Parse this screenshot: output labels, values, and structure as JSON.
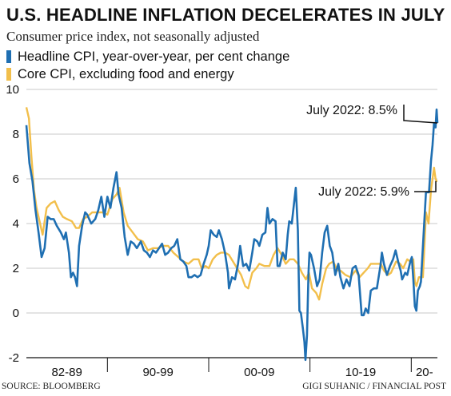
{
  "title": "U.S. HEADLINE INFLATION DECELERATES IN JULY",
  "subtitle": "Consumer price index, not seasonally adjusted",
  "source": "SOURCE: BLOOMBERG",
  "credit": "GIGI SUHANIC / FINANCIAL POST",
  "colors": {
    "headline": "#1f6fb2",
    "core": "#f2bf4b",
    "grid": "#c8c8c8",
    "axis": "#111111"
  },
  "chart_data": {
    "type": "line",
    "title": "U.S. HEADLINE INFLATION DECELERATES IN JULY",
    "subtitle": "Consumer price index, not seasonally adjusted",
    "xlabel": "",
    "ylabel": "",
    "xlim": [
      1982.0,
      2022.58
    ],
    "ylim": [
      -2,
      10
    ],
    "y_ticks": [
      -2,
      0,
      2,
      4,
      6,
      8,
      10
    ],
    "x_tick_labels": [
      {
        "label": "82-89",
        "x": 1986.0
      },
      {
        "label": "90-99",
        "x": 1995.0
      },
      {
        "label": "00-09",
        "x": 2005.0
      },
      {
        "label": "10-19",
        "x": 2015.0
      },
      {
        "label": "20-",
        "x": 2021.3
      }
    ],
    "x_separators": [
      1990,
      2000,
      2010,
      2020
    ],
    "grid": "horizontal",
    "legend_position": "top-left",
    "series": [
      {
        "name": "Headline CPI, year-over-year, per cent change",
        "color": "#1f6fb2",
        "points": [
          [
            1982.0,
            8.4
          ],
          [
            1982.3,
            6.7
          ],
          [
            1982.6,
            5.9
          ],
          [
            1982.9,
            4.6
          ],
          [
            1983.2,
            3.6
          ],
          [
            1983.5,
            2.5
          ],
          [
            1983.8,
            2.9
          ],
          [
            1984.1,
            4.3
          ],
          [
            1984.4,
            4.2
          ],
          [
            1984.7,
            4.2
          ],
          [
            1985.0,
            3.9
          ],
          [
            1985.4,
            3.6
          ],
          [
            1985.7,
            3.3
          ],
          [
            1985.9,
            3.6
          ],
          [
            1986.2,
            2.7
          ],
          [
            1986.4,
            1.6
          ],
          [
            1986.6,
            1.8
          ],
          [
            1986.8,
            1.6
          ],
          [
            1987.0,
            1.2
          ],
          [
            1987.2,
            3.0
          ],
          [
            1987.5,
            3.9
          ],
          [
            1987.8,
            4.5
          ],
          [
            1988.0,
            4.4
          ],
          [
            1988.4,
            4.0
          ],
          [
            1988.8,
            4.2
          ],
          [
            1989.1,
            4.6
          ],
          [
            1989.4,
            5.2
          ],
          [
            1989.7,
            4.3
          ],
          [
            1990.0,
            5.2
          ],
          [
            1990.3,
            4.7
          ],
          [
            1990.6,
            5.6
          ],
          [
            1990.9,
            6.3
          ],
          [
            1991.1,
            5.3
          ],
          [
            1991.4,
            4.7
          ],
          [
            1991.7,
            3.4
          ],
          [
            1992.0,
            2.6
          ],
          [
            1992.3,
            3.2
          ],
          [
            1992.6,
            3.1
          ],
          [
            1992.9,
            2.9
          ],
          [
            1993.3,
            3.2
          ],
          [
            1993.6,
            2.8
          ],
          [
            1993.9,
            2.7
          ],
          [
            1994.2,
            2.5
          ],
          [
            1994.5,
            2.8
          ],
          [
            1994.8,
            2.7
          ],
          [
            1995.1,
            2.9
          ],
          [
            1995.4,
            3.1
          ],
          [
            1995.7,
            2.6
          ],
          [
            1996.0,
            2.7
          ],
          [
            1996.3,
            2.9
          ],
          [
            1996.6,
            3.0
          ],
          [
            1996.9,
            3.3
          ],
          [
            1997.2,
            2.4
          ],
          [
            1997.5,
            2.3
          ],
          [
            1997.8,
            2.1
          ],
          [
            1998.0,
            1.6
          ],
          [
            1998.3,
            1.6
          ],
          [
            1998.6,
            1.7
          ],
          [
            1998.9,
            1.6
          ],
          [
            1999.2,
            1.7
          ],
          [
            1999.5,
            2.2
          ],
          [
            1999.8,
            2.6
          ],
          [
            2000.0,
            3.0
          ],
          [
            2000.2,
            3.7
          ],
          [
            2000.5,
            3.5
          ],
          [
            2000.8,
            3.4
          ],
          [
            2001.0,
            3.7
          ],
          [
            2001.3,
            3.3
          ],
          [
            2001.6,
            2.7
          ],
          [
            2001.9,
            1.8
          ],
          [
            2002.0,
            1.1
          ],
          [
            2002.3,
            1.6
          ],
          [
            2002.6,
            1.5
          ],
          [
            2002.9,
            2.2
          ],
          [
            2003.1,
            3.0
          ],
          [
            2003.4,
            2.1
          ],
          [
            2003.7,
            2.2
          ],
          [
            2004.0,
            1.9
          ],
          [
            2004.3,
            2.7
          ],
          [
            2004.5,
            3.3
          ],
          [
            2004.8,
            3.2
          ],
          [
            2005.0,
            3.0
          ],
          [
            2005.3,
            3.5
          ],
          [
            2005.6,
            3.6
          ],
          [
            2005.8,
            4.7
          ],
          [
            2006.0,
            4.0
          ],
          [
            2006.3,
            4.2
          ],
          [
            2006.6,
            4.1
          ],
          [
            2006.8,
            2.1
          ],
          [
            2007.0,
            2.1
          ],
          [
            2007.3,
            2.7
          ],
          [
            2007.6,
            2.4
          ],
          [
            2007.8,
            3.5
          ],
          [
            2007.95,
            4.1
          ],
          [
            2008.2,
            4.0
          ],
          [
            2008.45,
            5.0
          ],
          [
            2008.6,
            5.6
          ],
          [
            2008.8,
            3.7
          ],
          [
            2008.95,
            0.1
          ],
          [
            2009.1,
            0.0
          ],
          [
            2009.3,
            -0.7
          ],
          [
            2009.45,
            -1.3
          ],
          [
            2009.55,
            -2.1
          ],
          [
            2009.7,
            -1.0
          ],
          [
            2009.85,
            1.8
          ],
          [
            2009.95,
            2.7
          ],
          [
            2010.1,
            2.6
          ],
          [
            2010.4,
            2.0
          ],
          [
            2010.7,
            1.2
          ],
          [
            2010.95,
            1.5
          ],
          [
            2011.2,
            2.7
          ],
          [
            2011.45,
            3.6
          ],
          [
            2011.7,
            3.9
          ],
          [
            2011.95,
            3.0
          ],
          [
            2012.2,
            2.7
          ],
          [
            2012.5,
            1.7
          ],
          [
            2012.8,
            2.2
          ],
          [
            2013.0,
            1.6
          ],
          [
            2013.3,
            1.1
          ],
          [
            2013.6,
            1.5
          ],
          [
            2013.9,
            1.2
          ],
          [
            2014.2,
            2.0
          ],
          [
            2014.5,
            2.1
          ],
          [
            2014.8,
            1.7
          ],
          [
            2014.95,
            0.8
          ],
          [
            2015.1,
            -0.1
          ],
          [
            2015.3,
            -0.1
          ],
          [
            2015.5,
            0.2
          ],
          [
            2015.75,
            0.0
          ],
          [
            2016.0,
            1.0
          ],
          [
            2016.3,
            1.1
          ],
          [
            2016.6,
            1.1
          ],
          [
            2016.95,
            2.1
          ],
          [
            2017.1,
            2.7
          ],
          [
            2017.3,
            2.2
          ],
          [
            2017.6,
            1.7
          ],
          [
            2017.9,
            2.1
          ],
          [
            2018.2,
            2.4
          ],
          [
            2018.45,
            2.8
          ],
          [
            2018.7,
            2.3
          ],
          [
            2018.95,
            1.9
          ],
          [
            2019.1,
            1.5
          ],
          [
            2019.4,
            1.8
          ],
          [
            2019.6,
            1.7
          ],
          [
            2019.9,
            2.3
          ],
          [
            2020.05,
            2.5
          ],
          [
            2020.2,
            1.5
          ],
          [
            2020.35,
            0.3
          ],
          [
            2020.5,
            0.1
          ],
          [
            2020.65,
            1.0
          ],
          [
            2020.85,
            1.2
          ],
          [
            2020.95,
            1.4
          ],
          [
            2021.1,
            2.6
          ],
          [
            2021.3,
            4.2
          ],
          [
            2021.45,
            5.4
          ],
          [
            2021.75,
            5.4
          ],
          [
            2021.95,
            6.8
          ],
          [
            2022.1,
            7.5
          ],
          [
            2022.25,
            8.5
          ],
          [
            2022.4,
            8.3
          ],
          [
            2022.5,
            9.1
          ],
          [
            2022.58,
            8.5
          ]
        ]
      },
      {
        "name": "Core CPI, excluding food and energy",
        "color": "#f2bf4b",
        "points": [
          [
            1982.0,
            9.2
          ],
          [
            1982.25,
            8.7
          ],
          [
            1982.5,
            7.0
          ],
          [
            1982.75,
            5.5
          ],
          [
            1983.0,
            4.7
          ],
          [
            1983.3,
            4.1
          ],
          [
            1983.6,
            3.5
          ],
          [
            1984.0,
            4.7
          ],
          [
            1984.4,
            4.9
          ],
          [
            1984.8,
            5.0
          ],
          [
            1985.2,
            4.6
          ],
          [
            1985.6,
            4.3
          ],
          [
            1986.0,
            4.2
          ],
          [
            1986.5,
            4.1
          ],
          [
            1986.9,
            3.8
          ],
          [
            1987.2,
            3.8
          ],
          [
            1987.6,
            4.2
          ],
          [
            1988.0,
            4.3
          ],
          [
            1988.5,
            4.5
          ],
          [
            1989.0,
            4.5
          ],
          [
            1989.5,
            4.5
          ],
          [
            1990.0,
            4.4
          ],
          [
            1990.5,
            5.1
          ],
          [
            1990.9,
            5.3
          ],
          [
            1991.2,
            5.6
          ],
          [
            1991.6,
            4.5
          ],
          [
            1992.0,
            3.9
          ],
          [
            1992.5,
            3.6
          ],
          [
            1993.0,
            3.3
          ],
          [
            1993.5,
            3.2
          ],
          [
            1994.0,
            2.8
          ],
          [
            1994.5,
            2.9
          ],
          [
            1995.0,
            2.9
          ],
          [
            1995.5,
            3.0
          ],
          [
            1996.0,
            3.0
          ],
          [
            1996.5,
            2.7
          ],
          [
            1997.0,
            2.5
          ],
          [
            1997.5,
            2.3
          ],
          [
            1998.0,
            2.2
          ],
          [
            1998.5,
            2.4
          ],
          [
            1999.0,
            2.4
          ],
          [
            1999.3,
            2.0
          ],
          [
            1999.7,
            2.1
          ],
          [
            2000.0,
            2.0
          ],
          [
            2000.4,
            2.4
          ],
          [
            2000.8,
            2.6
          ],
          [
            2001.2,
            2.7
          ],
          [
            2001.6,
            2.7
          ],
          [
            2002.0,
            2.6
          ],
          [
            2002.4,
            2.3
          ],
          [
            2002.8,
            2.0
          ],
          [
            2003.2,
            1.7
          ],
          [
            2003.6,
            1.2
          ],
          [
            2003.9,
            1.1
          ],
          [
            2004.3,
            1.8
          ],
          [
            2004.7,
            2.0
          ],
          [
            2005.0,
            2.2
          ],
          [
            2005.5,
            2.1
          ],
          [
            2006.0,
            2.1
          ],
          [
            2006.4,
            2.6
          ],
          [
            2006.8,
            2.9
          ],
          [
            2007.2,
            2.6
          ],
          [
            2007.6,
            2.2
          ],
          [
            2008.0,
            2.4
          ],
          [
            2008.4,
            2.4
          ],
          [
            2008.8,
            2.2
          ],
          [
            2009.2,
            1.8
          ],
          [
            2009.6,
            1.5
          ],
          [
            2009.9,
            1.8
          ],
          [
            2010.2,
            1.1
          ],
          [
            2010.6,
            0.9
          ],
          [
            2010.9,
            0.6
          ],
          [
            2011.2,
            1.3
          ],
          [
            2011.6,
            2.0
          ],
          [
            2011.9,
            2.2
          ],
          [
            2012.3,
            2.3
          ],
          [
            2012.7,
            1.9
          ],
          [
            2013.0,
            1.9
          ],
          [
            2013.5,
            1.7
          ],
          [
            2014.0,
            1.6
          ],
          [
            2014.5,
            1.9
          ],
          [
            2014.9,
            1.6
          ],
          [
            2015.3,
            1.8
          ],
          [
            2015.7,
            2.0
          ],
          [
            2016.0,
            2.2
          ],
          [
            2016.5,
            2.2
          ],
          [
            2017.0,
            2.2
          ],
          [
            2017.3,
            1.9
          ],
          [
            2017.7,
            1.7
          ],
          [
            2018.0,
            1.8
          ],
          [
            2018.5,
            2.3
          ],
          [
            2018.9,
            2.2
          ],
          [
            2019.2,
            2.0
          ],
          [
            2019.6,
            2.4
          ],
          [
            2019.9,
            2.3
          ],
          [
            2020.2,
            2.4
          ],
          [
            2020.35,
            1.4
          ],
          [
            2020.5,
            1.2
          ],
          [
            2020.75,
            1.6
          ],
          [
            2020.95,
            1.6
          ],
          [
            2021.15,
            1.6
          ],
          [
            2021.3,
            3.0
          ],
          [
            2021.45,
            4.5
          ],
          [
            2021.7,
            4.0
          ],
          [
            2021.95,
            5.5
          ],
          [
            2022.1,
            6.0
          ],
          [
            2022.25,
            6.5
          ],
          [
            2022.4,
            6.0
          ],
          [
            2022.5,
            5.9
          ],
          [
            2022.58,
            5.9
          ]
        ]
      }
    ],
    "annotations": [
      {
        "text": "July 2022: 8.5%",
        "x": 2022.58,
        "y": 8.5
      },
      {
        "text": "July 2022: 5.9%",
        "x": 2022.58,
        "y": 5.9
      }
    ]
  }
}
